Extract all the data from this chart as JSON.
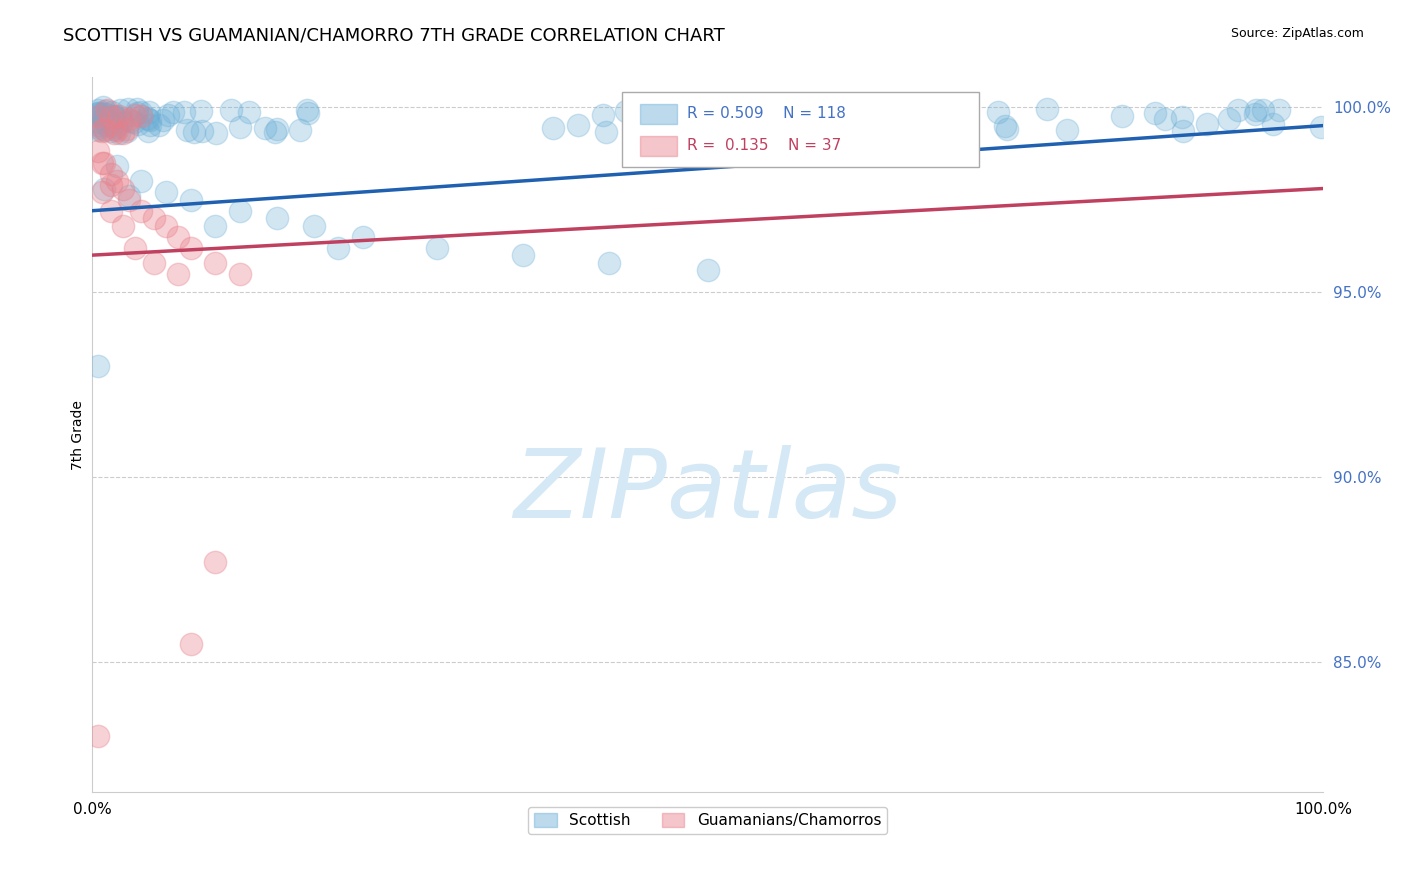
{
  "title": "SCOTTISH VS GUAMANIAN/CHAMORRO 7TH GRADE CORRELATION CHART",
  "source": "Source: ZipAtlas.com",
  "ylabel": "7th Grade",
  "xlim": [
    0.0,
    1.0
  ],
  "ylim": [
    0.815,
    1.008
  ],
  "yticks": [
    0.85,
    0.9,
    0.95,
    1.0
  ],
  "ytick_labels": [
    "85.0%",
    "90.0%",
    "95.0%",
    "100.0%"
  ],
  "xticks": [
    0.0,
    1.0
  ],
  "xtick_labels": [
    "0.0%",
    "100.0%"
  ],
  "legend_entries": [
    "Scottish",
    "Guamanians/Chamorros"
  ],
  "legend_r_n": [
    {
      "R": 0.509,
      "N": 118,
      "color": "#6baed6"
    },
    {
      "R": 0.135,
      "N": 37,
      "color": "#e8808a"
    }
  ],
  "blue_color": "#6baed6",
  "pink_color": "#e8808a",
  "blue_line_color": "#2060b0",
  "pink_line_color": "#c04060",
  "watermark": "ZIPatlas",
  "watermark_color": "#d5e8f5",
  "background_color": "#ffffff",
  "grid_color": "#cccccc",
  "title_fontsize": 13,
  "source_fontsize": 9,
  "tick_fontsize": 11,
  "ylabel_fontsize": 10
}
